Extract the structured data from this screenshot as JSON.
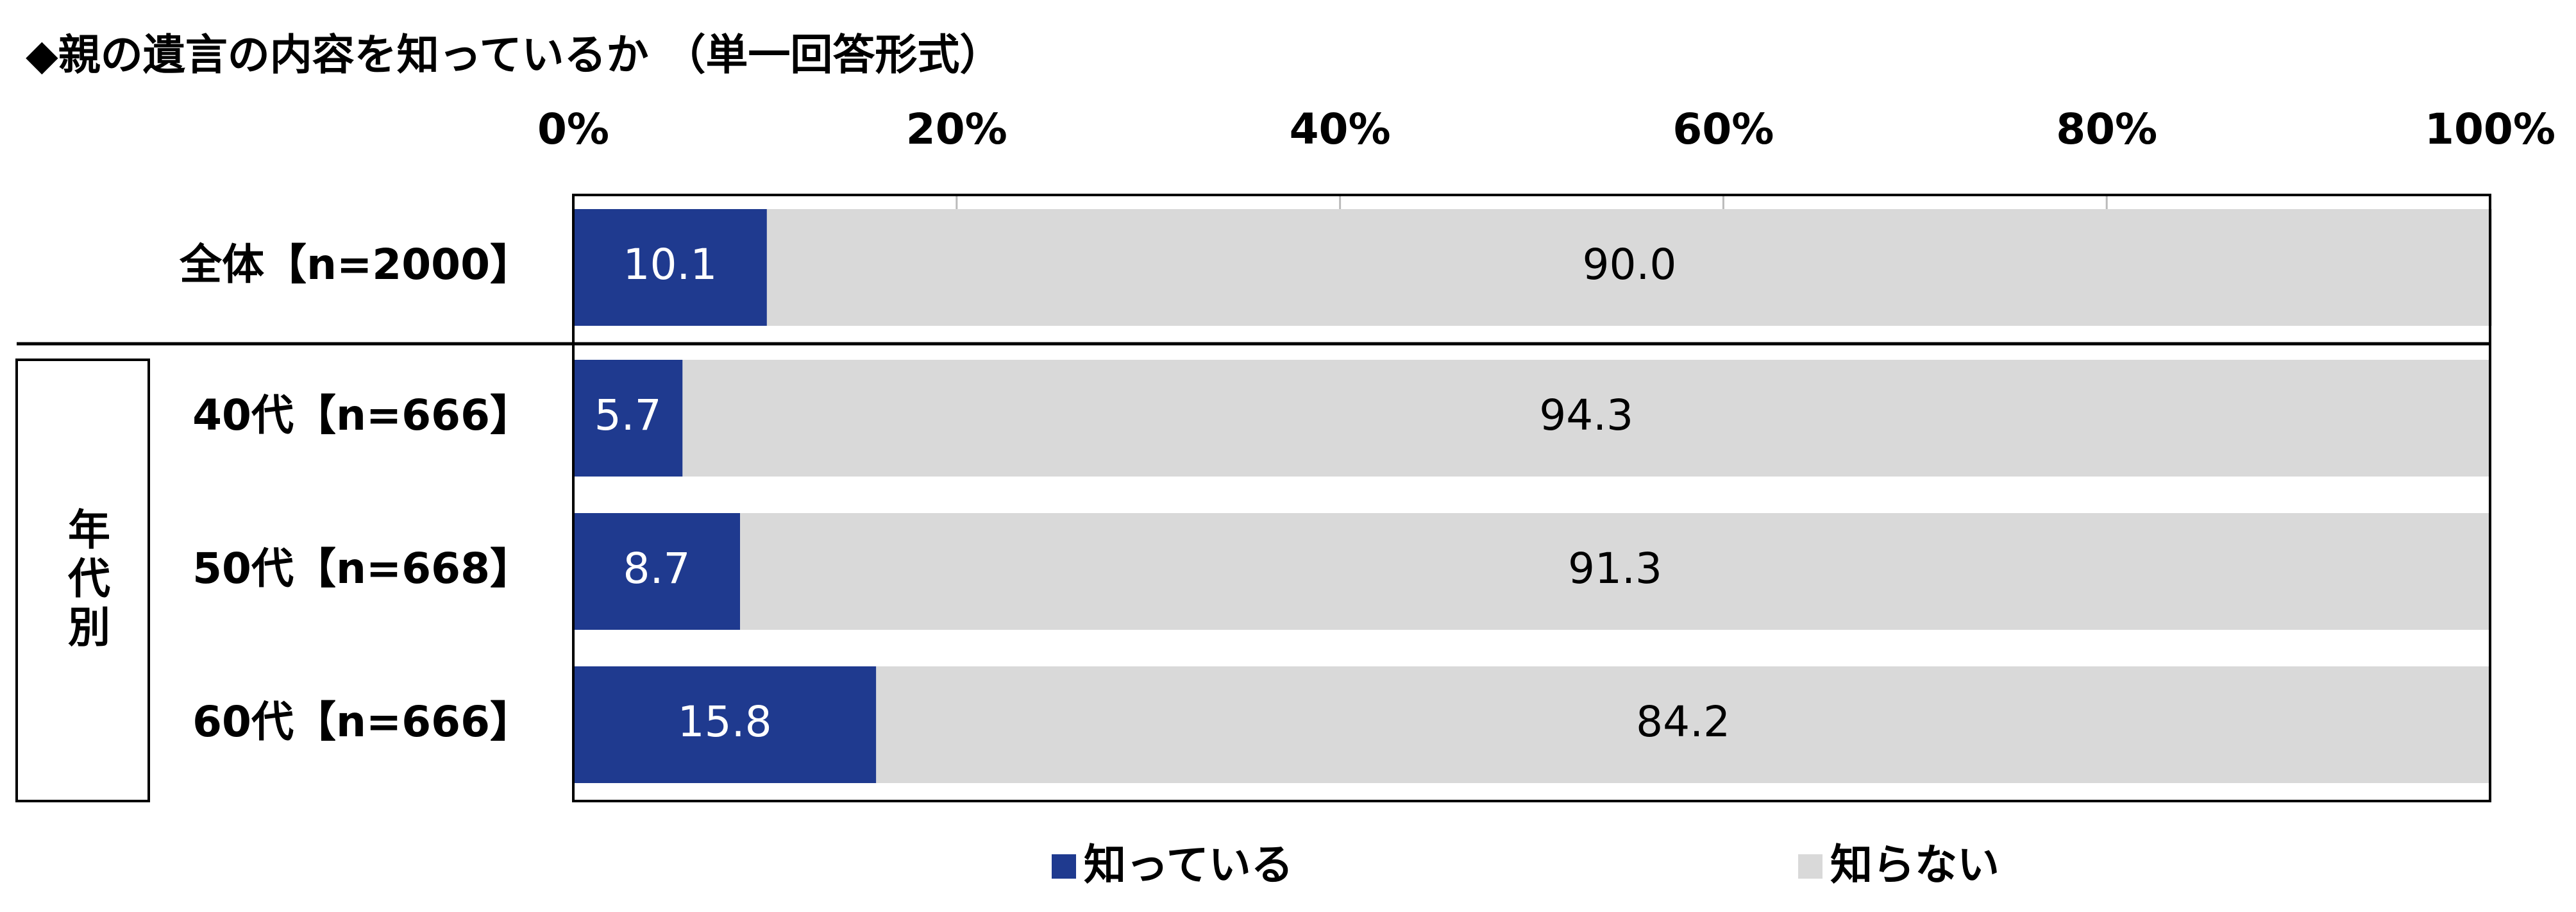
{
  "chart_data": {
    "type": "stacked-barh",
    "title": "◆親の遺言の内容を知っているか （単一回答形式）",
    "categories": [
      "全体【n=2000】",
      "40代【n=666】",
      "50代【n=668】",
      "60代【n=666】"
    ],
    "group_label": "年代別",
    "series": [
      {
        "name": "知っている",
        "color": "#1f3a8f",
        "values": [
          10.1,
          5.7,
          8.7,
          15.8
        ],
        "value_labels": [
          "10.1",
          "5.7",
          "8.7",
          "15.8"
        ]
      },
      {
        "name": "知らない",
        "color": "#d9d9d9",
        "values": [
          90.0,
          94.3,
          91.3,
          84.2
        ],
        "value_labels": [
          "90.0",
          "94.3",
          "91.3",
          "84.2"
        ]
      }
    ],
    "xlim": [
      0,
      100
    ],
    "xticks": [
      {
        "value": 0,
        "label": "0%"
      },
      {
        "value": 20,
        "label": "20%"
      },
      {
        "value": 40,
        "label": "40%"
      },
      {
        "value": 60,
        "label": "60%"
      },
      {
        "value": 80,
        "label": "80%"
      },
      {
        "value": 100,
        "label": "100%"
      }
    ],
    "legend": "bottom"
  }
}
